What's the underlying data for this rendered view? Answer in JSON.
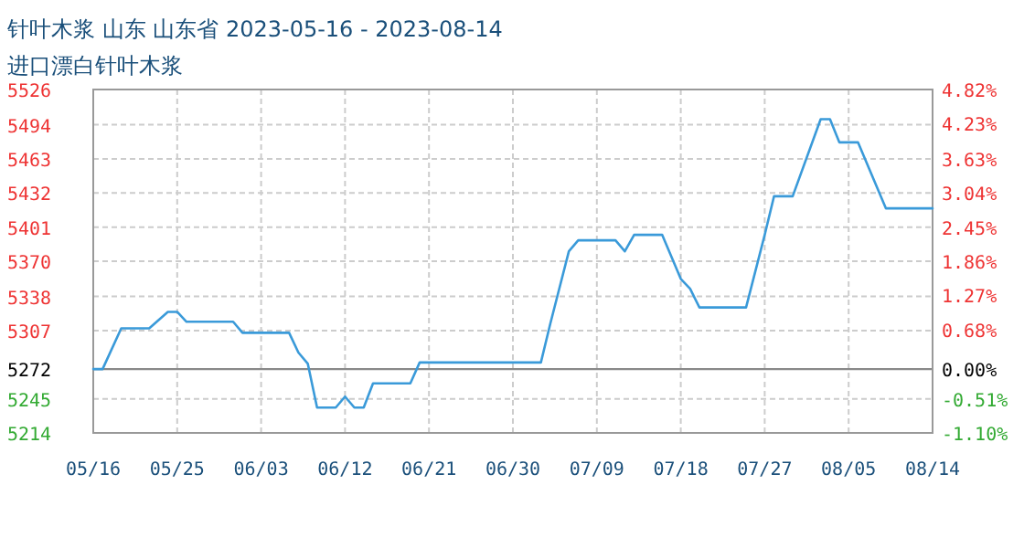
{
  "chart_data": {
    "type": "line",
    "title": "针叶木浆 山东 山东省 2023-05-16 - 2023-08-14",
    "subtitle": "进口漂白针叶木浆",
    "x": [
      "2023-05-16",
      "2023-05-17",
      "2023-05-19",
      "2023-05-22",
      "2023-05-24",
      "2023-05-25",
      "2023-05-26",
      "2023-05-31",
      "2023-06-01",
      "2023-06-06",
      "2023-06-07",
      "2023-06-08",
      "2023-06-09",
      "2023-06-11",
      "2023-06-12",
      "2023-06-13",
      "2023-06-14",
      "2023-06-15",
      "2023-06-19",
      "2023-06-20",
      "2023-07-03",
      "2023-07-04",
      "2023-07-06",
      "2023-07-07",
      "2023-07-11",
      "2023-07-12",
      "2023-07-13",
      "2023-07-16",
      "2023-07-18",
      "2023-07-19",
      "2023-07-20",
      "2023-07-25",
      "2023-07-27",
      "2023-07-28",
      "2023-07-30",
      "2023-08-02",
      "2023-08-03",
      "2023-08-04",
      "2023-08-06",
      "2023-08-09",
      "2023-08-14"
    ],
    "series": [
      {
        "color": "#3a9ad9",
        "values": [
          5272,
          5272,
          5309,
          5309,
          5324,
          5324,
          5315,
          5315,
          5305,
          5305,
          5287,
          5277,
          5237,
          5237,
          5247,
          5237,
          5237,
          5259,
          5259,
          5278,
          5278,
          5313,
          5379,
          5389,
          5389,
          5379,
          5394,
          5394,
          5354,
          5345,
          5328,
          5328,
          5394,
          5429,
          5429,
          5499,
          5499,
          5478,
          5478,
          5418,
          5418
        ]
      }
    ],
    "xlim": [
      "2023-05-16",
      "2023-08-14"
    ],
    "xticks": [
      {
        "value": "2023-05-16",
        "label": "05/16"
      },
      {
        "value": "2023-05-25",
        "label": "05/25"
      },
      {
        "value": "2023-06-03",
        "label": "06/03"
      },
      {
        "value": "2023-06-12",
        "label": "06/12"
      },
      {
        "value": "2023-06-21",
        "label": "06/21"
      },
      {
        "value": "2023-06-30",
        "label": "06/30"
      },
      {
        "value": "2023-07-09",
        "label": "07/09"
      },
      {
        "value": "2023-07-18",
        "label": "07/18"
      },
      {
        "value": "2023-07-27",
        "label": "07/27"
      },
      {
        "value": "2023-08-05",
        "label": "08/05"
      },
      {
        "value": "2023-08-14",
        "label": "08/14"
      }
    ],
    "ylim": [
      5214,
      5526
    ],
    "yticks": [
      5214,
      5245,
      5272,
      5307,
      5338,
      5370,
      5401,
      5432,
      5463,
      5494,
      5526
    ],
    "y2lim": [
      -1.1,
      4.82
    ],
    "y2ticks": [
      {
        "value": -1.1,
        "label": "-1.10%"
      },
      {
        "value": -0.51,
        "label": "-0.51%"
      },
      {
        "value": 0,
        "label": "0.00%"
      },
      {
        "value": 0.68,
        "label": "0.68%"
      },
      {
        "value": 1.27,
        "label": "1.27%"
      },
      {
        "value": 1.86,
        "label": "1.86%"
      },
      {
        "value": 2.45,
        "label": "2.45%"
      },
      {
        "value": 3.04,
        "label": "3.04%"
      },
      {
        "value": 3.63,
        "label": "3.63%"
      },
      {
        "value": 4.23,
        "label": "4.23%"
      },
      {
        "value": 4.82,
        "label": "4.82%"
      }
    ],
    "ref_lines": [
      {
        "axis": "y",
        "value": 5272,
        "color": "#888888"
      }
    ],
    "grid": true,
    "marker": "none",
    "line_style": "solid"
  }
}
